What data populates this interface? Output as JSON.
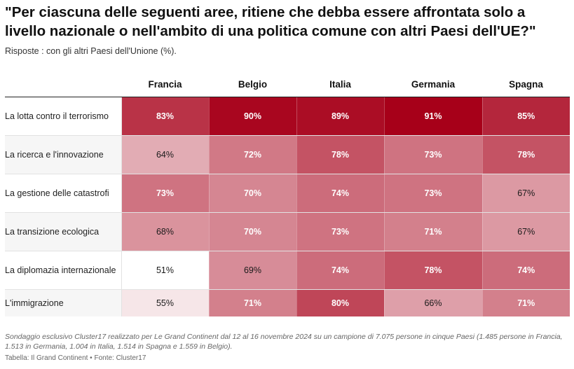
{
  "title": "\"Per ciascuna delle seguenti aree, ritiene che debba essere affrontata solo a livello nazionale o nell'ambito di una politica comune con altri Paesi dell'UE?\"",
  "subtitle": "Risposte : con gli altri Paesi dell'Unione (%).",
  "footnote": "Sondaggio esclusivo Cluster17 realizzato per Le Grand Continent dal 12 al 16 novembre 2024 su un campione di 7.075 persone in cinque Paesi (1.485 persone in Francia, 1.513 in Germania, 1.004 in Italia, 1.514 in Spagna e 1.559 in Belgio).",
  "source": "Tabella: Il Grand Continent • Fonte: Cluster17",
  "colors": {
    "low": "#ffffff",
    "high": "#a70019",
    "text_dark": "#1a1a1a",
    "text_light": "#ffffff"
  },
  "chart_data": {
    "type": "heatmap",
    "columns": [
      "Francia",
      "Belgio",
      "Italia",
      "Germania",
      "Spagna"
    ],
    "scale": [
      51,
      91
    ],
    "unit": "%",
    "rows": [
      {
        "label": "La lotta contro il terrorismo",
        "values": [
          83,
          90,
          89,
          91,
          85
        ]
      },
      {
        "label": "La ricerca e l'innovazione",
        "values": [
          64,
          72,
          78,
          73,
          78
        ]
      },
      {
        "label": "La gestione delle catastrofi",
        "values": [
          73,
          70,
          74,
          73,
          67
        ]
      },
      {
        "label": "La transizione ecologica",
        "values": [
          68,
          70,
          73,
          71,
          67
        ]
      },
      {
        "label": "La diplomazia internazionale",
        "values": [
          51,
          69,
          74,
          78,
          74
        ]
      },
      {
        "label": "L'immigrazione",
        "values": [
          55,
          71,
          80,
          66,
          71
        ]
      }
    ]
  }
}
